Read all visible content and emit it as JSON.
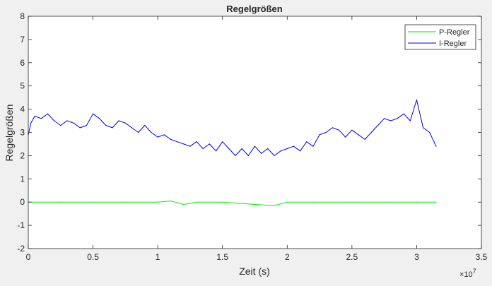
{
  "chart_data": {
    "type": "line",
    "title": "Regelgrößen",
    "xlabel": "Zeit (s)",
    "ylabel": "Regelgrößen",
    "x_exponent_label": "×10",
    "x_exponent_power": "7",
    "xlim": [
      0,
      3.5
    ],
    "ylim": [
      -2,
      8
    ],
    "x_scale_factor": 10000000,
    "xticks": [
      0,
      0.5,
      1,
      1.5,
      2,
      2.5,
      3,
      3.5
    ],
    "xtick_labels": [
      "0",
      "0.5",
      "1",
      "1.5",
      "2",
      "2.5",
      "3",
      "3.5"
    ],
    "yticks": [
      -2,
      -1,
      0,
      1,
      2,
      3,
      4,
      5,
      6,
      7,
      8
    ],
    "ytick_labels": [
      "-2",
      "-1",
      "0",
      "1",
      "2",
      "3",
      "4",
      "5",
      "6",
      "7",
      "8"
    ],
    "grid": false,
    "legend_position": "top-right",
    "series": [
      {
        "name": "P-Regler",
        "color": "#00ee00",
        "x": [
          0,
          0.25,
          0.5,
          0.75,
          1.0,
          1.1,
          1.2,
          1.3,
          1.5,
          1.75,
          1.9,
          2.0,
          2.2,
          2.5,
          2.75,
          3.0,
          3.15
        ],
        "y": [
          0.0,
          0.0,
          0.0,
          0.0,
          0.0,
          0.05,
          -0.1,
          0.0,
          0.0,
          -0.1,
          -0.15,
          0.0,
          0.0,
          0.0,
          0.0,
          0.0,
          0.0
        ]
      },
      {
        "name": "I-Regler",
        "color": "#0000e0",
        "x": [
          0,
          0.02,
          0.05,
          0.1,
          0.15,
          0.2,
          0.25,
          0.3,
          0.35,
          0.4,
          0.45,
          0.5,
          0.55,
          0.6,
          0.65,
          0.7,
          0.75,
          0.8,
          0.85,
          0.9,
          0.95,
          1.0,
          1.05,
          1.1,
          1.15,
          1.2,
          1.25,
          1.3,
          1.35,
          1.4,
          1.45,
          1.5,
          1.55,
          1.6,
          1.65,
          1.7,
          1.75,
          1.8,
          1.85,
          1.9,
          1.95,
          2.0,
          2.05,
          2.1,
          2.15,
          2.2,
          2.25,
          2.3,
          2.35,
          2.4,
          2.45,
          2.5,
          2.55,
          2.6,
          2.65,
          2.7,
          2.75,
          2.8,
          2.85,
          2.9,
          2.95,
          3.0,
          3.05,
          3.1,
          3.15
        ],
        "y": [
          2.9,
          3.4,
          3.7,
          3.6,
          3.8,
          3.5,
          3.3,
          3.5,
          3.4,
          3.2,
          3.3,
          3.8,
          3.6,
          3.3,
          3.2,
          3.5,
          3.4,
          3.2,
          3.0,
          3.3,
          3.0,
          2.8,
          2.9,
          2.7,
          2.6,
          2.5,
          2.4,
          2.6,
          2.3,
          2.5,
          2.2,
          2.6,
          2.3,
          2.0,
          2.3,
          2.0,
          2.4,
          2.1,
          2.3,
          2.0,
          2.2,
          2.3,
          2.4,
          2.2,
          2.6,
          2.4,
          2.9,
          3.0,
          3.2,
          3.1,
          2.8,
          3.1,
          2.9,
          2.7,
          3.0,
          3.3,
          3.6,
          3.5,
          3.6,
          3.8,
          3.5,
          4.4,
          3.2,
          3.0,
          2.4
        ]
      }
    ]
  }
}
